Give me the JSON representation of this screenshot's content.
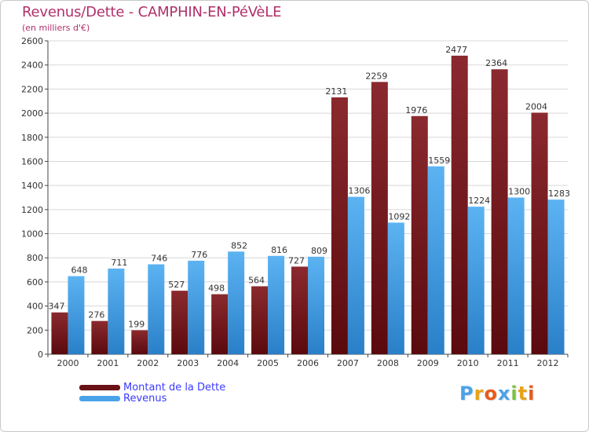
{
  "chart_data": {
    "type": "bar",
    "title": "Revenus/Dette - CAMPHIN-EN-PéVèLE",
    "subtitle": "(en milliers d'€)",
    "categories": [
      "2000",
      "2001",
      "2002",
      "2003",
      "2004",
      "2005",
      "2006",
      "2007",
      "2008",
      "2009",
      "2010",
      "2011",
      "2012"
    ],
    "series": [
      {
        "name": "Montant de la Dette",
        "values": [
          347,
          276,
          199,
          527,
          498,
          564,
          727,
          2131,
          2259,
          1976,
          2477,
          2364,
          2004
        ],
        "color": "#7a1a1e"
      },
      {
        "name": "Revenus",
        "values": [
          648,
          711,
          746,
          776,
          852,
          816,
          809,
          1306,
          1092,
          1559,
          1224,
          1300,
          1283
        ],
        "color": "#4aa3e8"
      }
    ],
    "ylim": [
      0,
      2600
    ],
    "yticks": [
      0,
      200,
      400,
      600,
      800,
      1000,
      1200,
      1400,
      1600,
      1800,
      2000,
      2200,
      2400,
      2600
    ],
    "grid": true,
    "legend_position": "bottom-left"
  },
  "logo": {
    "letters": [
      "P",
      "r",
      "o",
      "x",
      "i",
      "t",
      "i"
    ],
    "colors": [
      "#4aa3e8",
      "#e8a21a",
      "#e85a1a",
      "#4aa3e8",
      "#7cc242",
      "#e8a21a",
      "#e85a1a"
    ]
  },
  "colors": {
    "background": "#ffffff",
    "grid": "#d8d8d8",
    "title": "#b0306a",
    "legend_text": "#3a3aff"
  }
}
